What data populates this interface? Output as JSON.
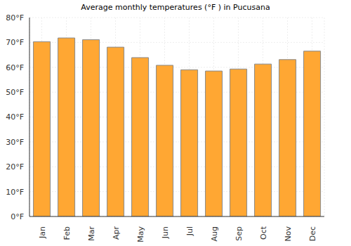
{
  "chart_data": {
    "type": "bar",
    "title": "Average monthly temperatures (°F ) in Pucusana",
    "categories": [
      "Jan",
      "Feb",
      "Mar",
      "Apr",
      "May",
      "Jun",
      "Jul",
      "Aug",
      "Sep",
      "Oct",
      "Nov",
      "Dec"
    ],
    "values": [
      70.3,
      71.8,
      71.1,
      68.1,
      63.9,
      60.8,
      59.0,
      58.5,
      59.3,
      61.3,
      63.1,
      66.5
    ],
    "color": "#ffa733",
    "ylim": [
      0,
      80
    ],
    "yticks": [
      {
        "value": 0,
        "label": "0°F"
      },
      {
        "value": 10,
        "label": "10°F"
      },
      {
        "value": 20,
        "label": "20°F"
      },
      {
        "value": 30,
        "label": "30°F"
      },
      {
        "value": 40,
        "label": "40°F"
      },
      {
        "value": 50,
        "label": "50°F"
      },
      {
        "value": 60,
        "label": "60°F"
      },
      {
        "value": 70,
        "label": "70°F"
      },
      {
        "value": 80,
        "label": "80°F"
      }
    ],
    "grid": true
  }
}
